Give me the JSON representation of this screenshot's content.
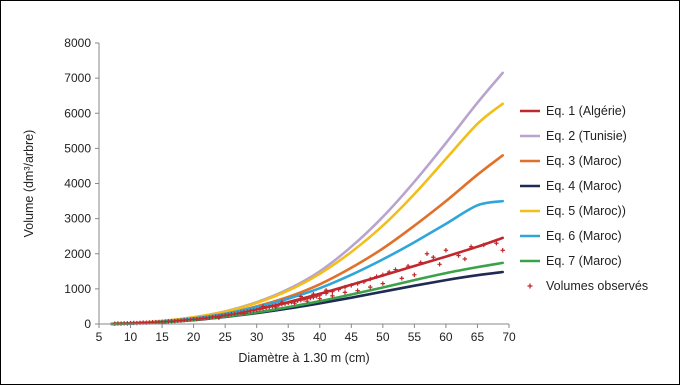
{
  "chart_data": {
    "type": "line",
    "title": "",
    "xlabel": "Diamètre à 1.30 m (cm)",
    "ylabel": "Volume (dm³/arbre)",
    "xlim": [
      5,
      70
    ],
    "ylim": [
      0,
      8000
    ],
    "xticks": [
      5,
      10,
      15,
      20,
      25,
      30,
      35,
      40,
      45,
      50,
      55,
      60,
      65,
      70
    ],
    "yticks": [
      0,
      1000,
      2000,
      3000,
      4000,
      5000,
      6000,
      7000,
      8000
    ],
    "grid": false,
    "legend_position": "right",
    "x": [
      7,
      10,
      15,
      20,
      25,
      30,
      35,
      40,
      45,
      50,
      55,
      60,
      65,
      69
    ],
    "series": [
      {
        "name": "Eq. 1 (Algérie)",
        "color": "#c0282d",
        "values": [
          5,
          20,
          60,
          140,
          260,
          420,
          620,
          860,
          1120,
          1380,
          1650,
          1920,
          2200,
          2450
        ]
      },
      {
        "name": "Eq. 2 (Tunisie)",
        "color": "#b8a4cf",
        "values": [
          5,
          25,
          85,
          190,
          360,
          620,
          990,
          1500,
          2200,
          3050,
          4050,
          5150,
          6300,
          7150
        ]
      },
      {
        "name": "Eq. 3 (Maroc)",
        "color": "#e0702a",
        "values": [
          5,
          20,
          70,
          160,
          300,
          500,
          770,
          1130,
          1600,
          2150,
          2800,
          3500,
          4250,
          4800
        ]
      },
      {
        "name": "Eq. 4 (Maroc)",
        "color": "#1f2a55",
        "values": [
          4,
          15,
          50,
          110,
          200,
          310,
          440,
          590,
          750,
          920,
          1090,
          1250,
          1390,
          1480
        ]
      },
      {
        "name": "Eq. 5 (Maroc))",
        "color": "#f2be1a",
        "values": [
          5,
          25,
          85,
          190,
          350,
          600,
          950,
          1430,
          2050,
          2800,
          3700,
          4700,
          5700,
          6270
        ]
      },
      {
        "name": "Eq. 6 (Maroc)",
        "color": "#2fa6d9",
        "values": [
          5,
          20,
          70,
          160,
          290,
          480,
          720,
          1020,
          1400,
          1840,
          2330,
          2850,
          3380,
          3500
        ]
      },
      {
        "name": "Eq. 7 (Maroc)",
        "color": "#3aa34a",
        "values": [
          4,
          15,
          55,
          120,
          210,
          330,
          480,
          650,
          840,
          1040,
          1250,
          1450,
          1620,
          1740
        ]
      }
    ],
    "observed": {
      "name": "Volumes observés",
      "color": "#c0282d",
      "points": [
        [
          7.5,
          10
        ],
        [
          8,
          15
        ],
        [
          8.5,
          12
        ],
        [
          9,
          20
        ],
        [
          9.5,
          18
        ],
        [
          10,
          25
        ],
        [
          10.5,
          30
        ],
        [
          11,
          28
        ],
        [
          11.5,
          35
        ],
        [
          12,
          40
        ],
        [
          12.5,
          38
        ],
        [
          13,
          45
        ],
        [
          13.5,
          50
        ],
        [
          14,
          55
        ],
        [
          14.5,
          60
        ],
        [
          15,
          62
        ],
        [
          15.5,
          70
        ],
        [
          16,
          75
        ],
        [
          16.5,
          80
        ],
        [
          17,
          85
        ],
        [
          17.5,
          95
        ],
        [
          18,
          100
        ],
        [
          18.5,
          110
        ],
        [
          19,
          120
        ],
        [
          19.5,
          125
        ],
        [
          20,
          135
        ],
        [
          20.5,
          140
        ],
        [
          21,
          150
        ],
        [
          21.5,
          160
        ],
        [
          22,
          170
        ],
        [
          22.5,
          180
        ],
        [
          23,
          200
        ],
        [
          23.5,
          210
        ],
        [
          24,
          220
        ],
        [
          24.5,
          235
        ],
        [
          25,
          250
        ],
        [
          25.5,
          260
        ],
        [
          26,
          280
        ],
        [
          26.5,
          290
        ],
        [
          27,
          300
        ],
        [
          27.5,
          320
        ],
        [
          28,
          340
        ],
        [
          28.5,
          350
        ],
        [
          29,
          370
        ],
        [
          29.5,
          380
        ],
        [
          30,
          400
        ],
        [
          30.5,
          420
        ],
        [
          31,
          440
        ],
        [
          31.5,
          460
        ],
        [
          32,
          480
        ],
        [
          32.5,
          500
        ],
        [
          33,
          520
        ],
        [
          33.5,
          540
        ],
        [
          34,
          560
        ],
        [
          34.5,
          580
        ],
        [
          35,
          600
        ],
        [
          35.5,
          620
        ],
        [
          36,
          640
        ],
        [
          36.5,
          660
        ],
        [
          37,
          680
        ],
        [
          37.5,
          700
        ],
        [
          38,
          720
        ],
        [
          38.5,
          740
        ],
        [
          39,
          760
        ],
        [
          39.5,
          790
        ],
        [
          40,
          820
        ],
        [
          41,
          870
        ],
        [
          42,
          920
        ],
        [
          43,
          980
        ],
        [
          44,
          1050
        ],
        [
          45,
          1100
        ],
        [
          46,
          1150
        ],
        [
          47,
          1200
        ],
        [
          48,
          1280
        ],
        [
          49,
          1350
        ],
        [
          50,
          1400
        ],
        [
          51,
          1480
        ],
        [
          52,
          1550
        ],
        [
          54,
          1650
        ],
        [
          56,
          1750
        ],
        [
          57,
          2000
        ],
        [
          58,
          1900
        ],
        [
          60,
          2100
        ],
        [
          62,
          1950
        ],
        [
          64,
          2200
        ],
        [
          66,
          2250
        ],
        [
          68,
          2300
        ],
        [
          69,
          2100
        ],
        [
          24,
          180
        ],
        [
          28,
          300
        ],
        [
          33,
          480
        ],
        [
          36,
          590
        ],
        [
          38,
          650
        ],
        [
          40,
          720
        ],
        [
          42,
          800
        ],
        [
          44,
          900
        ],
        [
          46,
          950
        ],
        [
          48,
          1050
        ],
        [
          50,
          1150
        ],
        [
          53,
          1300
        ],
        [
          55,
          1400
        ],
        [
          59,
          1700
        ],
        [
          63,
          1850
        ],
        [
          31,
          500
        ],
        [
          34,
          620
        ],
        [
          37,
          780
        ],
        [
          39,
          850
        ],
        [
          41,
          960
        ]
      ]
    }
  }
}
